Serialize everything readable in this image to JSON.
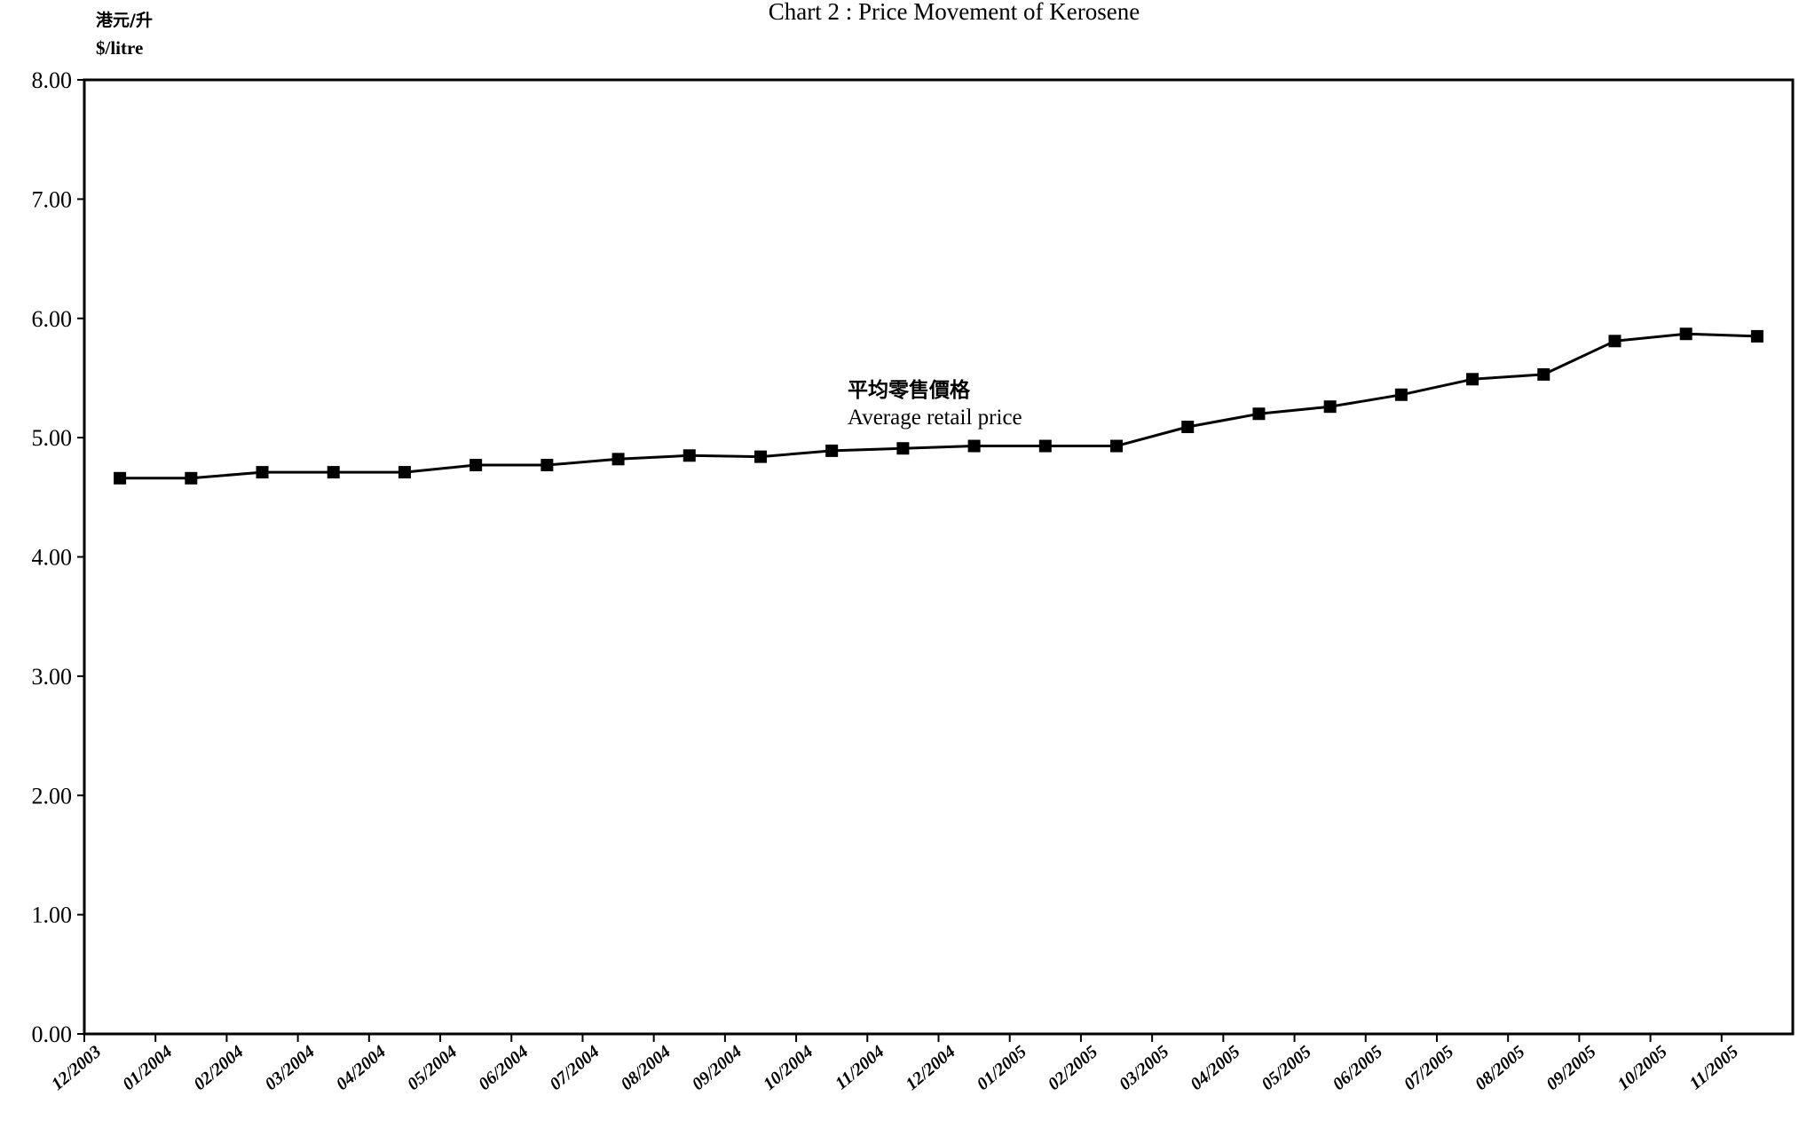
{
  "chart_data": {
    "type": "line",
    "title": "Chart 2 :  Price Movement of Kerosene",
    "ylabel_zh": "港元/升",
    "ylabel": "$/litre",
    "xlabel": "",
    "ylim": [
      0,
      8
    ],
    "yticks": [
      "0.00",
      "1.00",
      "2.00",
      "3.00",
      "4.00",
      "5.00",
      "6.00",
      "7.00",
      "8.00"
    ],
    "categories": [
      "12/2003",
      "01/2004",
      "02/2004",
      "03/2004",
      "04/2004",
      "05/2004",
      "06/2004",
      "07/2004",
      "08/2004",
      "09/2004",
      "10/2004",
      "11/2004",
      "12/2004",
      "01/2005",
      "02/2005",
      "03/2005",
      "04/2005",
      "05/2005",
      "06/2005",
      "07/2005",
      "08/2005",
      "09/2005",
      "10/2005",
      "11/2005"
    ],
    "grid": false,
    "series": [
      {
        "name_zh": "平均零售價格",
        "name": "Average retail price",
        "marker": "square",
        "color": "#000000",
        "values": [
          4.66,
          4.66,
          4.71,
          4.71,
          4.71,
          4.77,
          4.77,
          4.82,
          4.85,
          4.84,
          4.89,
          4.91,
          4.93,
          4.93,
          4.93,
          5.09,
          5.2,
          5.26,
          5.36,
          5.49,
          5.53,
          5.81,
          5.87,
          5.85
        ]
      }
    ]
  }
}
